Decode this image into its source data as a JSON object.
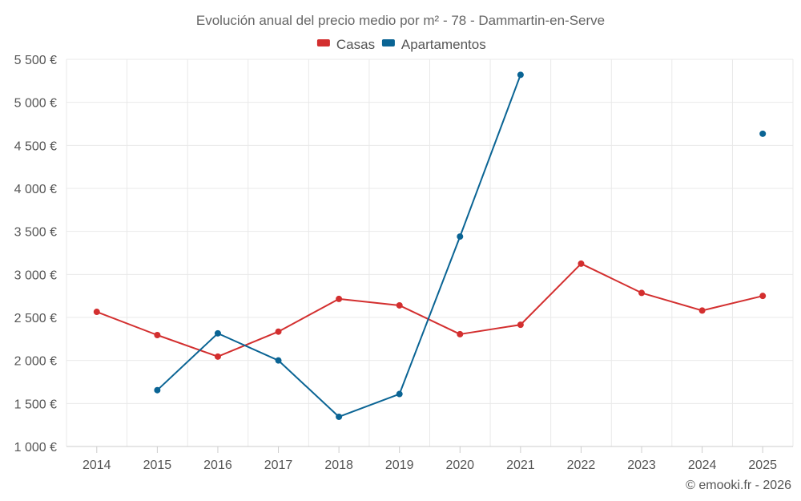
{
  "chart_data": {
    "type": "line",
    "title": "Evolución anual del precio medio por m² - 78 - Dammartin-en-Serve",
    "xlabel": "",
    "ylabel": "",
    "ylim": [
      1000,
      5500
    ],
    "y_ticks": [
      1000,
      1500,
      2000,
      2500,
      3000,
      3500,
      4000,
      4500,
      5000,
      5500
    ],
    "y_tick_labels": [
      "1 000 €",
      "1 500 €",
      "2 000 €",
      "2 500 €",
      "3 000 €",
      "3 500 €",
      "4 000 €",
      "4 500 €",
      "5 000 €",
      "5 500 €"
    ],
    "categories": [
      "2014",
      "2015",
      "2016",
      "2017",
      "2018",
      "2019",
      "2020",
      "2021",
      "2022",
      "2023",
      "2024",
      "2025"
    ],
    "legend_position": "top-center",
    "grid": true,
    "series": [
      {
        "name": "Casas",
        "color": "#d32f2f",
        "values": [
          2565,
          2295,
          2045,
          2335,
          2715,
          2640,
          2305,
          2415,
          3125,
          2785,
          2580,
          2750
        ]
      },
      {
        "name": "Apartamentos",
        "color": "#0a6494",
        "values": [
          null,
          1655,
          2315,
          2000,
          1345,
          1610,
          3440,
          5320,
          null,
          null,
          null,
          4635
        ]
      }
    ]
  },
  "credit": "© emooki.fr - 2026"
}
